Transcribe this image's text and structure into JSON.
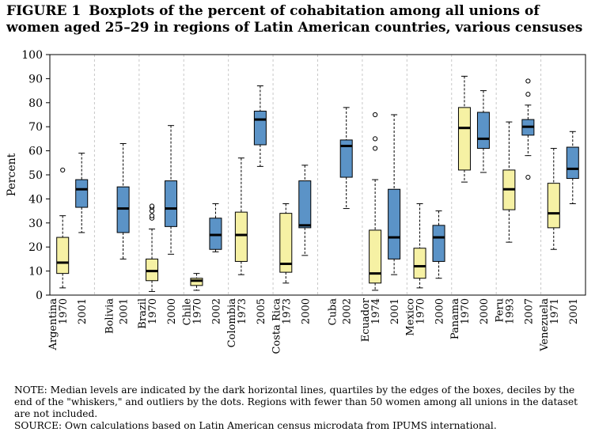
{
  "figure": {
    "label": "FIGURE 1",
    "title": "Boxplots of the percent of cohabitation among all unions of women aged 25–29 in regions of Latin American countries, various censuses"
  },
  "chart_data": {
    "type": "boxplot",
    "ylabel": "Percent",
    "ylim": [
      0,
      100
    ],
    "yticks": [
      0,
      10,
      20,
      30,
      40,
      50,
      60,
      70,
      80,
      90,
      100
    ],
    "grid": "dashed vertical separators between countries",
    "colors": {
      "early_census": "#f6f1a4",
      "late_census": "#5b93c7",
      "median": "#000000"
    },
    "countries": [
      {
        "name": "Argentina",
        "censuses": [
          {
            "year": "1970",
            "color": "yellow",
            "whisker_low": 3,
            "q1": 9,
            "median": 13.5,
            "q3": 24,
            "whisker_high": 33,
            "outliers": [
              52
            ]
          },
          {
            "year": "2001",
            "color": "blue",
            "whisker_low": 26,
            "q1": 36.5,
            "median": 44,
            "q3": 48,
            "whisker_high": 59,
            "outliers": []
          }
        ]
      },
      {
        "name": "Bolivia",
        "censuses": [
          {
            "year": "2001",
            "color": "blue",
            "whisker_low": 15,
            "q1": 26,
            "median": 36,
            "q3": 45,
            "whisker_high": 63,
            "outliers": []
          }
        ]
      },
      {
        "name": "Brazil",
        "censuses": [
          {
            "year": "1970",
            "color": "yellow",
            "whisker_low": 1.5,
            "q1": 6,
            "median": 10,
            "q3": 15,
            "whisker_high": 27.5,
            "outliers": [
              32,
              33,
              35,
              36.5,
              37
            ]
          },
          {
            "year": "2000",
            "color": "blue",
            "whisker_low": 17,
            "q1": 28.5,
            "median": 36,
            "q3": 47.5,
            "whisker_high": 70.5,
            "outliers": []
          }
        ]
      },
      {
        "name": "Chile",
        "censuses": [
          {
            "year": "1970",
            "color": "yellow",
            "whisker_low": 2,
            "q1": 4,
            "median": 6,
            "q3": 7,
            "whisker_high": 9,
            "outliers": []
          },
          {
            "year": "2002",
            "color": "blue",
            "whisker_low": 18,
            "q1": 19,
            "median": 25,
            "q3": 32,
            "whisker_high": 38,
            "outliers": []
          }
        ]
      },
      {
        "name": "Colombia",
        "censuses": [
          {
            "year": "1973",
            "color": "yellow",
            "whisker_low": 8.5,
            "q1": 14,
            "median": 25,
            "q3": 34.5,
            "whisker_high": 57,
            "outliers": []
          },
          {
            "year": "2005",
            "color": "blue",
            "whisker_low": 53.5,
            "q1": 62.5,
            "median": 73,
            "q3": 76.5,
            "whisker_high": 87,
            "outliers": []
          }
        ]
      },
      {
        "name": "Costa Rica",
        "censuses": [
          {
            "year": "1973",
            "color": "yellow",
            "whisker_low": 5,
            "q1": 9.5,
            "median": 13,
            "q3": 34,
            "whisker_high": 38,
            "outliers": []
          },
          {
            "year": "2000",
            "color": "blue",
            "whisker_low": 16.5,
            "q1": 28,
            "median": 29,
            "q3": 47.5,
            "whisker_high": 54,
            "outliers": []
          }
        ]
      },
      {
        "name": "Cuba",
        "censuses": [
          {
            "year": "2002",
            "color": "blue",
            "whisker_low": 36,
            "q1": 49,
            "median": 62,
            "q3": 64.5,
            "whisker_high": 78,
            "outliers": []
          }
        ]
      },
      {
        "name": "Ecuador",
        "censuses": [
          {
            "year": "1974",
            "color": "yellow",
            "whisker_low": 2,
            "q1": 5,
            "median": 9,
            "q3": 27,
            "whisker_high": 48,
            "outliers": [
              61,
              65,
              75
            ]
          },
          {
            "year": "2001",
            "color": "blue",
            "whisker_low": 8.5,
            "q1": 15,
            "median": 24,
            "q3": 44,
            "whisker_high": 75,
            "outliers": []
          }
        ]
      },
      {
        "name": "Mexico",
        "censuses": [
          {
            "year": "1970",
            "color": "yellow",
            "whisker_low": 3,
            "q1": 7,
            "median": 12,
            "q3": 19.5,
            "whisker_high": 38,
            "outliers": []
          },
          {
            "year": "2000",
            "color": "blue",
            "whisker_low": 7,
            "q1": 14,
            "median": 24,
            "q3": 29,
            "whisker_high": 35,
            "outliers": []
          }
        ]
      },
      {
        "name": "Panama",
        "censuses": [
          {
            "year": "1970",
            "color": "yellow",
            "whisker_low": 47,
            "q1": 52,
            "median": 69.5,
            "q3": 78,
            "whisker_high": 91,
            "outliers": []
          },
          {
            "year": "2000",
            "color": "blue",
            "whisker_low": 51,
            "q1": 61,
            "median": 65,
            "q3": 76,
            "whisker_high": 85,
            "outliers": []
          }
        ]
      },
      {
        "name": "Peru",
        "censuses": [
          {
            "year": "1993",
            "color": "yellow",
            "whisker_low": 22,
            "q1": 35.5,
            "median": 44,
            "q3": 52,
            "whisker_high": 72,
            "outliers": []
          },
          {
            "year": "2007",
            "color": "blue",
            "whisker_low": 58,
            "q1": 66.5,
            "median": 70,
            "q3": 73,
            "whisker_high": 79,
            "outliers": [
              49,
              83.5,
              89
            ]
          }
        ]
      },
      {
        "name": "Venezuela",
        "censuses": [
          {
            "year": "1971",
            "color": "yellow",
            "whisker_low": 19,
            "q1": 28,
            "median": 34,
            "q3": 46.5,
            "whisker_high": 61,
            "outliers": []
          },
          {
            "year": "2001",
            "color": "blue",
            "whisker_low": 38,
            "q1": 48.5,
            "median": 52.5,
            "q3": 61.5,
            "whisker_high": 68,
            "outliers": []
          }
        ]
      }
    ]
  },
  "notes": {
    "note": "NOTE: Median levels are indicated by the dark horizontal lines, quartiles by the edges of the boxes, deciles by the end of the \"whiskers,\" and outliers by the dots. Regions with fewer than 50 women among all unions in the dataset are not included.",
    "source": "SOURCE: Own calculations based on Latin American census microdata from IPUMS international."
  }
}
